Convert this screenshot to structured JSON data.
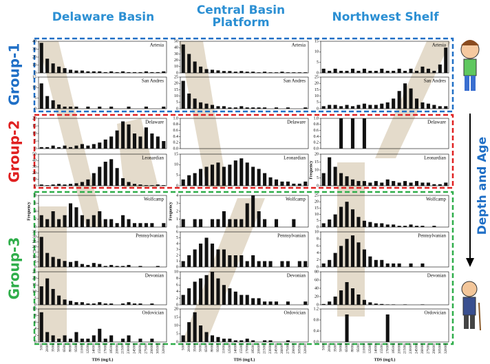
{
  "columns": [
    "Delaware Basin",
    "Central Basin Platform",
    "Northwest Shelf"
  ],
  "groups": [
    "Group-1",
    "Group-2",
    "Group-3"
  ],
  "side_label": "Depth and Age",
  "chart_data": [
    {
      "type": "bar",
      "title": "Artesia",
      "ylim": [
        0,
        40
      ],
      "yticks": [
        0,
        10,
        20,
        30,
        40
      ],
      "color": "#111111",
      "values": [
        38,
        18,
        12,
        8,
        6,
        4,
        3,
        3,
        2,
        2,
        2,
        1,
        2,
        1,
        2,
        1,
        1,
        1,
        2,
        1,
        1,
        2
      ]
    },
    {
      "type": "bar",
      "title": "San Andres",
      "ylim": [
        0,
        15
      ],
      "yticks": [
        0,
        5,
        10,
        15
      ],
      "color": "#111111",
      "values": [
        12,
        6,
        4,
        2,
        1,
        1,
        1,
        0,
        1,
        0,
        1,
        0,
        1,
        0,
        0,
        1,
        0,
        0,
        1,
        0,
        0,
        1
      ]
    },
    {
      "type": "bar",
      "title": "Delaware",
      "ylim": [
        0,
        20
      ],
      "yticks": [
        0,
        5,
        10,
        15,
        20
      ],
      "color": "#111111",
      "values": [
        1,
        1,
        2,
        1,
        2,
        1,
        2,
        3,
        2,
        3,
        4,
        6,
        8,
        12,
        18,
        16,
        10,
        8,
        14,
        10,
        8,
        5
      ]
    },
    {
      "type": "bar",
      "title": "Leonardian",
      "ylim": [
        0,
        50
      ],
      "yticks": [
        0,
        10,
        20,
        30,
        40,
        50
      ],
      "color": "#111111",
      "values": [
        2,
        1,
        2,
        3,
        2,
        3,
        4,
        6,
        10,
        20,
        30,
        38,
        42,
        28,
        12,
        6,
        3,
        2,
        1,
        1,
        2,
        1
      ]
    },
    {
      "type": "bar",
      "title": "Wolfcamp",
      "ylabel": "Frequency",
      "ylim": [
        0,
        8
      ],
      "yticks": [
        0,
        2,
        4,
        6,
        8
      ],
      "color": "#111111",
      "values": [
        3,
        2,
        4,
        2,
        3,
        6,
        5,
        3,
        2,
        3,
        4,
        2,
        2,
        1,
        3,
        2,
        1,
        1,
        1,
        1,
        0,
        1
      ]
    },
    {
      "type": "bar",
      "title": "Pennsylvanian",
      "ylim": [
        0,
        35
      ],
      "yticks": [
        0,
        5,
        10,
        15,
        20,
        25,
        30,
        35
      ],
      "color": "#111111",
      "values": [
        30,
        14,
        10,
        8,
        6,
        5,
        6,
        3,
        2,
        4,
        3,
        1,
        2,
        1,
        1,
        2,
        0,
        1,
        0,
        0,
        1,
        0
      ]
    },
    {
      "type": "bar",
      "title": "Devonian",
      "ylim": [
        0,
        25
      ],
      "yticks": [
        0,
        5,
        10,
        15,
        20,
        25
      ],
      "color": "#111111",
      "values": [
        14,
        20,
        12,
        7,
        4,
        3,
        2,
        2,
        1,
        1,
        2,
        1,
        1,
        0,
        1,
        2,
        1,
        1,
        0,
        1,
        0,
        0
      ]
    },
    {
      "type": "bar",
      "title": "Ordovician",
      "xlabel": "TDS (mg/L)",
      "ylim": [
        0,
        10
      ],
      "yticks": [
        0,
        2,
        4,
        6,
        8,
        10
      ],
      "color": "#111111",
      "values": [
        9,
        3,
        2,
        1,
        2,
        1,
        3,
        1,
        1,
        2,
        4,
        1,
        2,
        0,
        1,
        2,
        0,
        1,
        0,
        1,
        0,
        0
      ],
      "categories": [
        5000,
        20000,
        35000,
        50000,
        65000,
        80000,
        95000,
        110000,
        125000,
        140000,
        155000,
        170000,
        185000,
        200000,
        215000,
        230000,
        245000,
        260000,
        275000,
        290000,
        305000,
        320000
      ]
    },
    {
      "type": "bar",
      "title": "Artesia",
      "ylim": [
        0,
        50
      ],
      "yticks": [
        0,
        10,
        20,
        30,
        40,
        50
      ],
      "color": "#111111",
      "values": [
        45,
        30,
        18,
        10,
        6,
        5,
        4,
        3,
        3,
        2,
        3,
        2,
        2,
        1,
        2,
        1,
        1,
        2,
        1,
        1,
        1,
        1
      ]
    },
    {
      "type": "bar",
      "title": "San Andres",
      "ylim": [
        0,
        25
      ],
      "yticks": [
        0,
        5,
        10,
        15,
        20,
        25
      ],
      "color": "#111111",
      "values": [
        22,
        12,
        8,
        5,
        4,
        3,
        2,
        2,
        1,
        1,
        2,
        1,
        1,
        1,
        1,
        0,
        1,
        0,
        1,
        0,
        0,
        1
      ]
    },
    {
      "type": "bar",
      "title": "Delaware",
      "ylim": [
        0,
        1
      ],
      "yticks": [
        {
          "value": 0,
          "label": "0.0"
        },
        {
          "value": 0.2,
          "label": "0.2"
        },
        {
          "value": 0.4,
          "label": "0.4"
        },
        {
          "value": 0.6,
          "label": "0.6"
        },
        {
          "value": 0.8,
          "label": "0.8"
        },
        {
          "value": 1,
          "label": "1.0"
        }
      ],
      "color": "#111111",
      "values": [
        0,
        0,
        0,
        0,
        0,
        0,
        0,
        0,
        0,
        0,
        0,
        0,
        0,
        0,
        0,
        0,
        0,
        0,
        0,
        0,
        0,
        0
      ]
    },
    {
      "type": "bar",
      "title": "Leonardian",
      "ylim": [
        0,
        15
      ],
      "yticks": [
        0,
        5,
        10,
        15
      ],
      "color": "#111111",
      "values": [
        3,
        5,
        6,
        8,
        9,
        10,
        11,
        9,
        10,
        12,
        13,
        11,
        9,
        8,
        6,
        4,
        3,
        2,
        2,
        1,
        1,
        2
      ]
    },
    {
      "type": "bar",
      "title": "Wolfcamp",
      "ylabel": "Frequency",
      "ylim": [
        0,
        4
      ],
      "yticks": [
        0,
        1,
        2,
        3,
        4
      ],
      "color": "#111111",
      "values": [
        1,
        0,
        1,
        1,
        0,
        1,
        1,
        2,
        1,
        1,
        1,
        3,
        4,
        2,
        1,
        0,
        1,
        0,
        0,
        1,
        0,
        0
      ]
    },
    {
      "type": "bar",
      "title": "Pennsylvanian",
      "ylim": [
        0,
        6
      ],
      "yticks": [
        0,
        1,
        2,
        3,
        4,
        5,
        6
      ],
      "color": "#111111",
      "values": [
        1,
        2,
        3,
        4,
        5,
        4,
        3,
        3,
        2,
        2,
        2,
        1,
        2,
        1,
        1,
        1,
        0,
        1,
        1,
        0,
        1,
        1
      ]
    },
    {
      "type": "bar",
      "title": "Devonian",
      "ylim": [
        0,
        10
      ],
      "yticks": [
        0,
        2,
        4,
        6,
        8,
        10
      ],
      "color": "#111111",
      "values": [
        3,
        5,
        7,
        8,
        9,
        10,
        8,
        6,
        5,
        4,
        3,
        3,
        2,
        2,
        1,
        1,
        1,
        0,
        1,
        0,
        0,
        1
      ]
    },
    {
      "type": "bar",
      "title": "Ordovician",
      "xlabel": "TDS (mg/L)",
      "ylim": [
        0,
        20
      ],
      "yticks": [
        0,
        5,
        10,
        15,
        20
      ],
      "color": "#111111",
      "values": [
        4,
        12,
        18,
        10,
        6,
        4,
        3,
        2,
        2,
        1,
        1,
        2,
        1,
        0,
        1,
        1,
        0,
        0,
        1,
        0,
        0,
        0
      ],
      "categories": [
        5000,
        20000,
        35000,
        50000,
        65000,
        80000,
        95000,
        110000,
        125000,
        140000,
        155000,
        170000,
        185000,
        200000,
        215000,
        230000,
        245000,
        260000,
        275000,
        290000,
        305000,
        320000
      ]
    },
    {
      "type": "bar",
      "title": "Artesia",
      "ylim": [
        0,
        15
      ],
      "yticks": [
        0,
        5,
        10,
        15
      ],
      "color": "#111111",
      "values": [
        2,
        1,
        2,
        1,
        1,
        2,
        1,
        2,
        1,
        1,
        2,
        1,
        1,
        2,
        1,
        2,
        1,
        3,
        2,
        1,
        4,
        12
      ]
    },
    {
      "type": "bar",
      "title": "San Andres",
      "ylim": [
        0,
        25
      ],
      "yticks": [
        0,
        5,
        10,
        15,
        20,
        25
      ],
      "color": "#111111",
      "values": [
        2,
        3,
        3,
        2,
        3,
        2,
        3,
        4,
        3,
        3,
        4,
        5,
        8,
        14,
        20,
        16,
        8,
        5,
        4,
        3,
        2,
        2
      ]
    },
    {
      "type": "bar",
      "title": "Delaware",
      "ylim": [
        0,
        1
      ],
      "yticks": [
        {
          "value": 0,
          "label": "0.0"
        },
        {
          "value": 0.2,
          "label": "0.2"
        },
        {
          "value": 0.4,
          "label": "0.4"
        },
        {
          "value": 0.6,
          "label": "0.6"
        },
        {
          "value": 0.8,
          "label": "0.8"
        },
        {
          "value": 1,
          "label": "1.0"
        }
      ],
      "color": "#111111",
      "values": [
        0,
        0,
        0,
        1,
        0,
        1,
        0,
        1,
        0,
        0,
        0,
        0,
        0,
        0,
        0,
        0,
        0,
        0,
        0,
        0,
        0,
        0
      ]
    },
    {
      "type": "bar",
      "title": "Leonardian",
      "ylabel": "Frequency",
      "ylim": [
        0,
        20
      ],
      "yticks": [
        0,
        5,
        10,
        15,
        20
      ],
      "color": "#111111",
      "values": [
        8,
        18,
        12,
        8,
        6,
        4,
        3,
        3,
        2,
        3,
        2,
        4,
        3,
        2,
        3,
        2,
        3,
        2,
        2,
        1,
        1,
        2
      ]
    },
    {
      "type": "bar",
      "title": "Wolfcamp",
      "ylim": [
        0,
        25
      ],
      "yticks": [
        0,
        5,
        10,
        15,
        20,
        25
      ],
      "color": "#111111",
      "values": [
        3,
        6,
        10,
        16,
        20,
        14,
        8,
        5,
        4,
        3,
        3,
        2,
        2,
        1,
        1,
        2,
        1,
        1,
        0,
        1,
        0,
        0
      ]
    },
    {
      "type": "bar",
      "title": "Pennsylvanian",
      "ylim": [
        0,
        10
      ],
      "yticks": [
        0,
        2,
        4,
        6,
        8,
        10
      ],
      "color": "#111111",
      "values": [
        1,
        2,
        4,
        6,
        8,
        9,
        7,
        5,
        3,
        2,
        2,
        1,
        1,
        1,
        0,
        1,
        0,
        1,
        0,
        0,
        0,
        0
      ]
    },
    {
      "type": "bar",
      "title": "Devonian",
      "ylim": [
        0,
        80
      ],
      "yticks": [
        0,
        20,
        40,
        60,
        80
      ],
      "color": "#111111",
      "values": [
        2,
        8,
        20,
        35,
        55,
        40,
        25,
        12,
        6,
        3,
        2,
        1,
        1,
        0,
        1,
        0,
        0,
        1,
        0,
        0,
        0,
        0
      ]
    },
    {
      "type": "bar",
      "title": "Ordovician",
      "xlabel": "TDS (mg/L)",
      "ylim": [
        0,
        1.2
      ],
      "yticks": [
        {
          "value": 0,
          "label": "0.0"
        },
        {
          "value": 0.4,
          "label": "0.4"
        },
        {
          "value": 0.8,
          "label": "0.8"
        },
        {
          "value": 1.2,
          "label": "1.2"
        }
      ],
      "color": "#111111",
      "values": [
        0,
        0,
        0,
        0,
        1,
        0,
        0,
        0,
        0,
        0,
        0,
        1,
        0,
        0,
        0,
        0,
        0,
        0,
        0,
        0,
        0,
        0
      ],
      "categories": [
        5000,
        20000,
        35000,
        50000,
        65000,
        80000,
        95000,
        110000,
        125000,
        140000,
        155000,
        170000,
        185000,
        200000,
        215000,
        230000,
        245000,
        260000,
        275000,
        290000,
        305000,
        320000
      ]
    }
  ]
}
